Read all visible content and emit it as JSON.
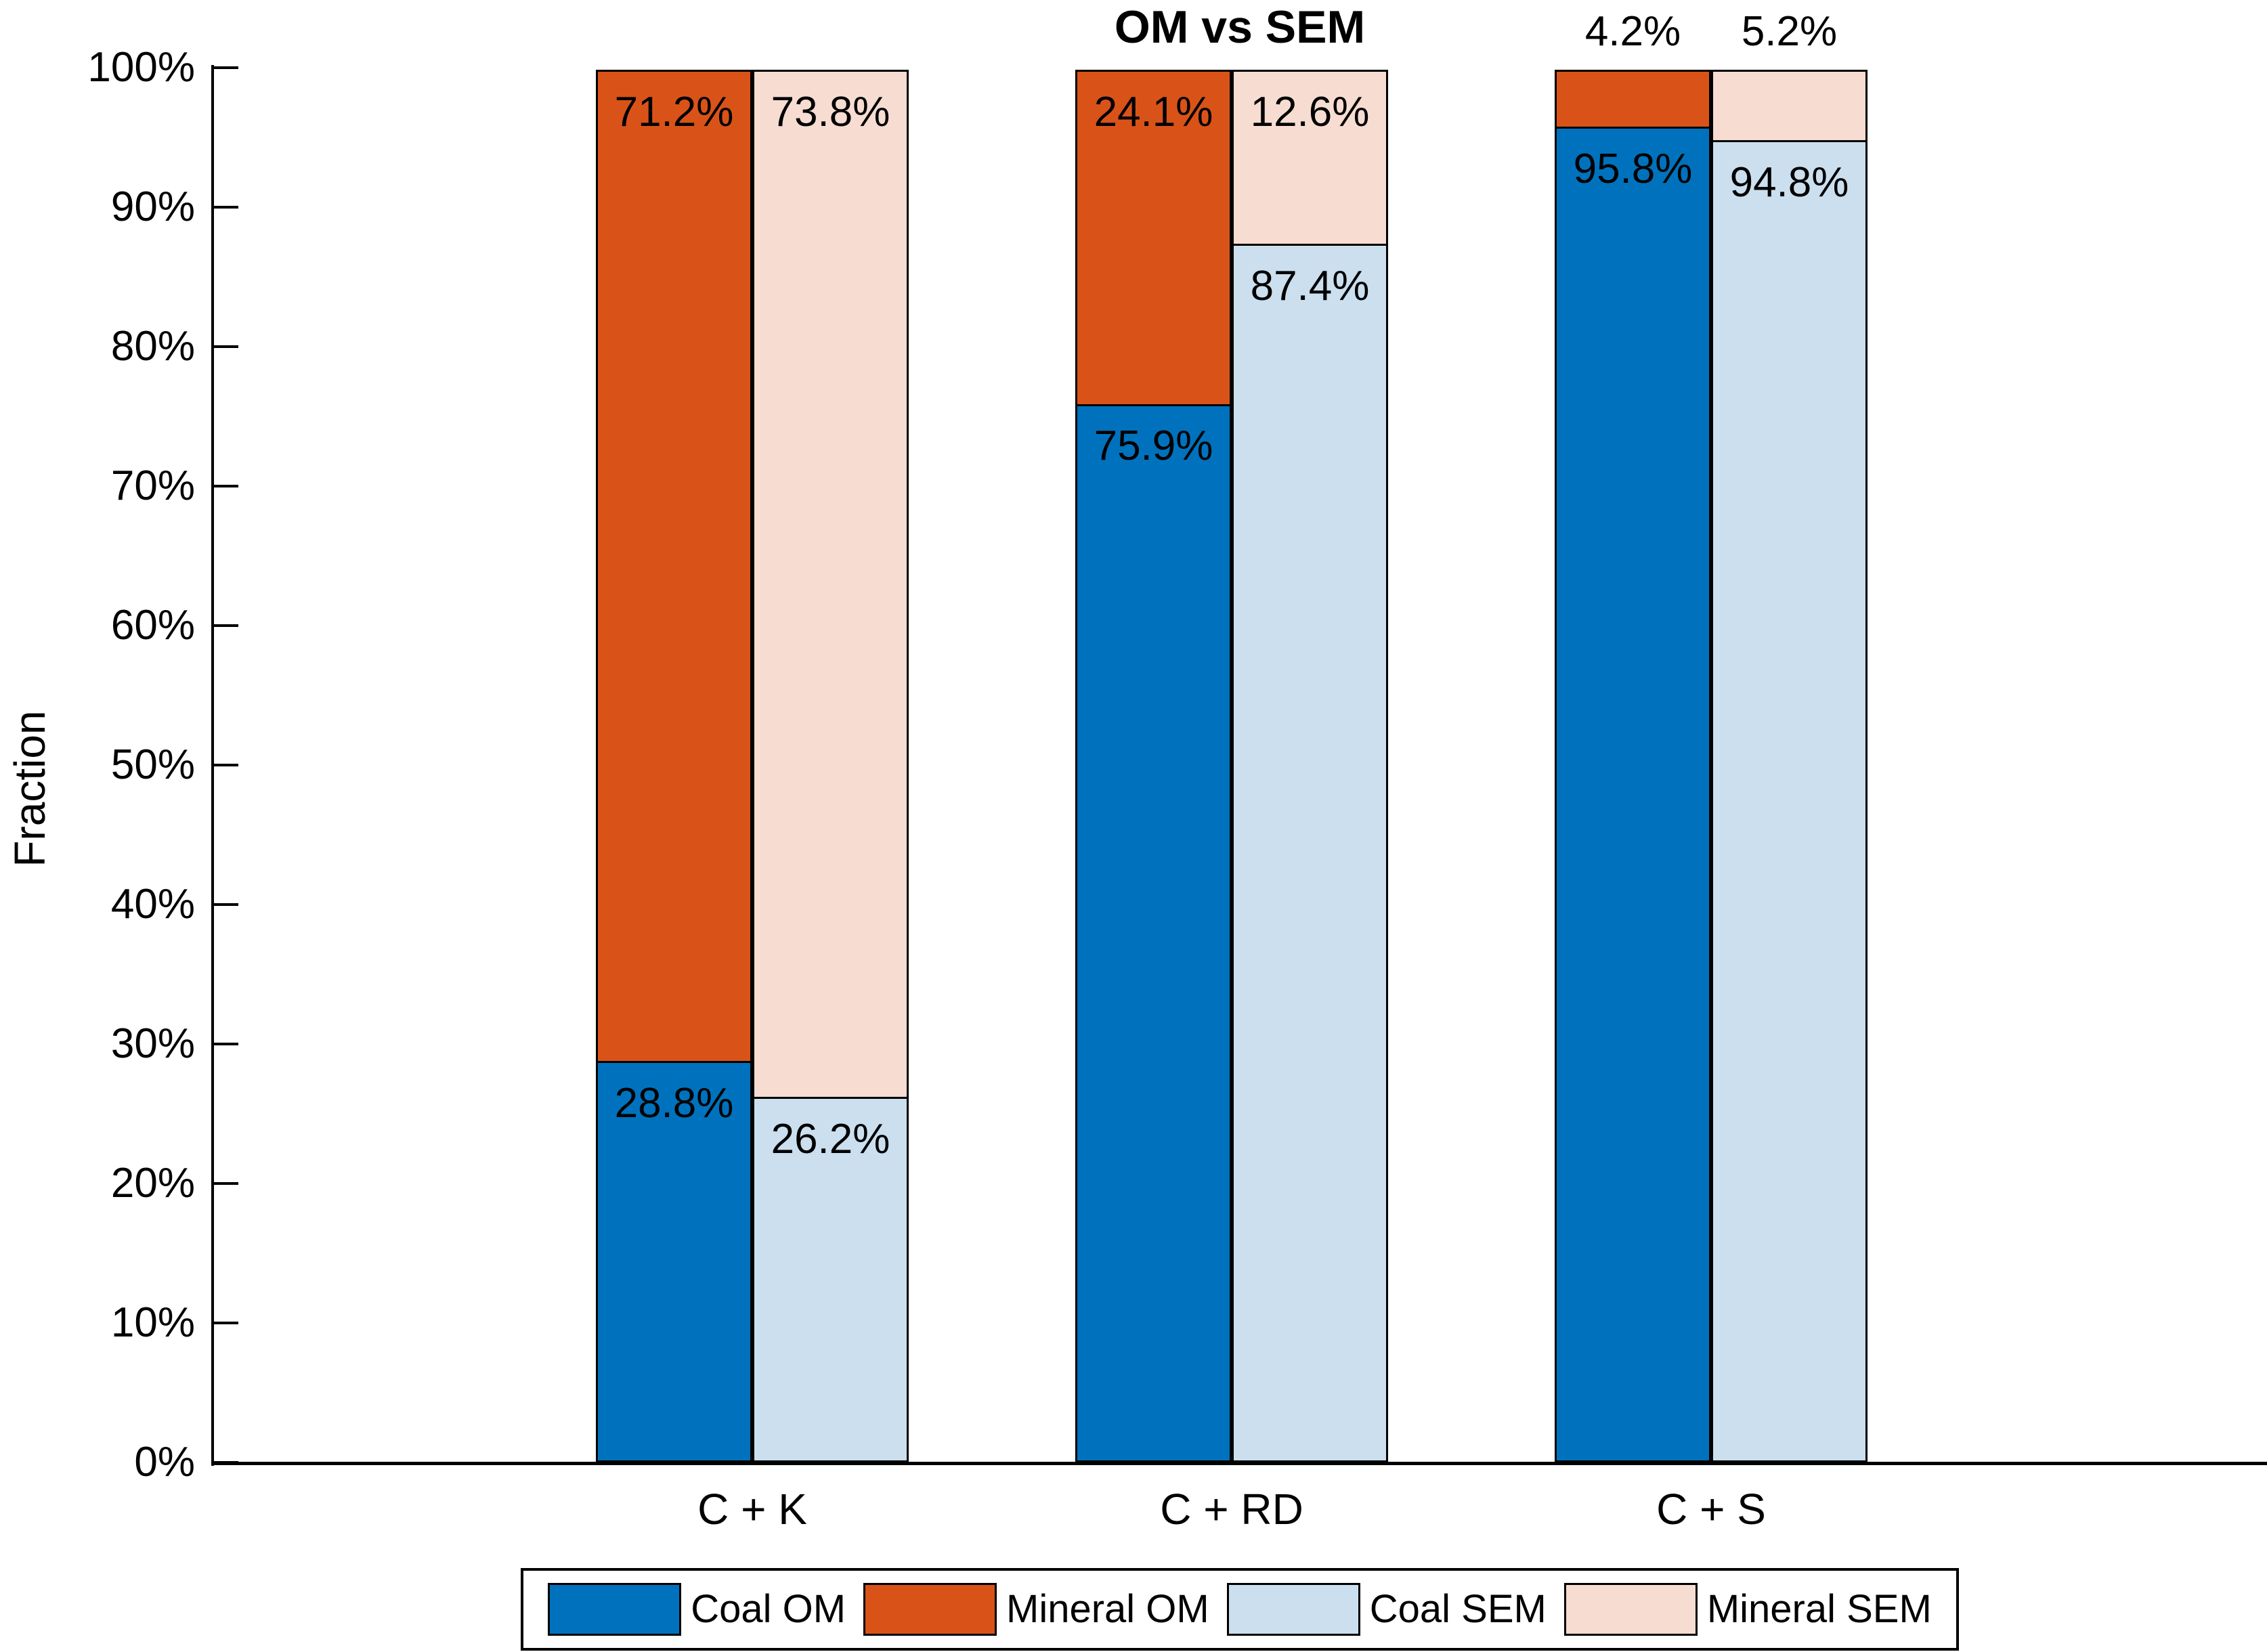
{
  "chart_data": {
    "type": "bar",
    "variant": "grouped-stacked-100pct",
    "title": "OM vs SEM",
    "ylabel": "Fraction",
    "xlabel": "",
    "ylim": [
      0,
      100
    ],
    "ytick_step": 10,
    "ytick_labels": [
      "0%",
      "10%",
      "20%",
      "30%",
      "40%",
      "50%",
      "60%",
      "70%",
      "80%",
      "90%",
      "100%"
    ],
    "grid": false,
    "legend_position": "bottom-center",
    "categories": [
      "C + K",
      "C + RD",
      "C + S"
    ],
    "bar_groups": [
      "OM",
      "SEM"
    ],
    "series": [
      {
        "name": "Coal OM",
        "group": "OM",
        "stack_order": 0,
        "color": "#0072BD",
        "values": [
          28.8,
          75.9,
          95.8
        ],
        "labels": [
          "28.8%",
          "75.9%",
          "95.8%"
        ]
      },
      {
        "name": "Mineral OM",
        "group": "OM",
        "stack_order": 1,
        "color": "#D95319",
        "values": [
          71.2,
          24.1,
          4.2
        ],
        "labels": [
          "71.2%",
          "24.1%",
          "4.2%"
        ]
      },
      {
        "name": "Coal SEM",
        "group": "SEM",
        "stack_order": 0,
        "color": "#CBDFEF",
        "values": [
          26.2,
          87.4,
          94.8
        ],
        "labels": [
          "26.2%",
          "87.4%",
          "94.8%"
        ]
      },
      {
        "name": "Mineral SEM",
        "group": "SEM",
        "stack_order": 1,
        "color": "#F6DCD1",
        "values": [
          73.8,
          12.6,
          5.2
        ],
        "labels": [
          "73.8%",
          "12.6%",
          "5.2%"
        ]
      }
    ],
    "label_outside_below_percent": 8,
    "legend_entries": [
      "Coal OM",
      "Mineral OM",
      "Coal SEM",
      "Mineral SEM"
    ]
  },
  "colors": {
    "background": "#FFFFFF",
    "axis": "#000000",
    "text": "#000000",
    "bar_edge": "#000000",
    "coal_om": "#0072BD",
    "mineral_om": "#D95319",
    "coal_sem": "#CBDFEF",
    "mineral_sem": "#F6DCD1"
  }
}
